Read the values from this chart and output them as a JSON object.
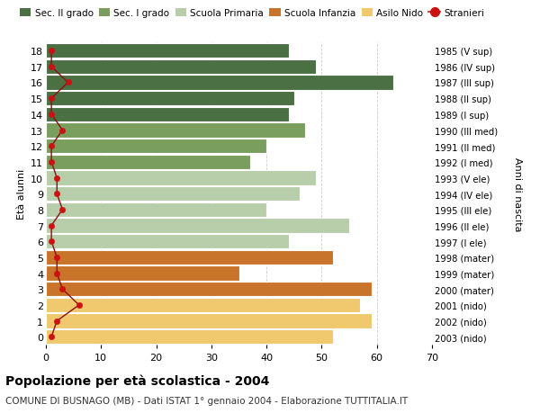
{
  "ages": [
    18,
    17,
    16,
    15,
    14,
    13,
    12,
    11,
    10,
    9,
    8,
    7,
    6,
    5,
    4,
    3,
    2,
    1,
    0
  ],
  "right_labels": [
    "1985 (V sup)",
    "1986 (IV sup)",
    "1987 (III sup)",
    "1988 (II sup)",
    "1989 (I sup)",
    "1990 (III med)",
    "1991 (II med)",
    "1992 (I med)",
    "1993 (V ele)",
    "1994 (IV ele)",
    "1995 (III ele)",
    "1996 (II ele)",
    "1997 (I ele)",
    "1998 (mater)",
    "1999 (mater)",
    "2000 (mater)",
    "2001 (nido)",
    "2002 (nido)",
    "2003 (nido)"
  ],
  "bar_values": [
    44,
    49,
    63,
    45,
    44,
    47,
    40,
    37,
    49,
    46,
    40,
    55,
    44,
    52,
    35,
    59,
    57,
    59,
    52
  ],
  "bar_colors": [
    "#4a7043",
    "#4a7043",
    "#4a7043",
    "#4a7043",
    "#4a7043",
    "#7a9e5e",
    "#7a9e5e",
    "#7a9e5e",
    "#b8ceaa",
    "#b8ceaa",
    "#b8ceaa",
    "#b8ceaa",
    "#b8ceaa",
    "#c8742a",
    "#c8742a",
    "#c8742a",
    "#f0c96e",
    "#f0c96e",
    "#f0c96e"
  ],
  "stranieri_values": [
    1,
    1,
    4,
    1,
    1,
    3,
    1,
    1,
    2,
    2,
    3,
    1,
    1,
    2,
    2,
    3,
    6,
    2,
    1
  ],
  "legend_entries": [
    {
      "label": "Sec. II grado",
      "color": "#4a7043"
    },
    {
      "label": "Sec. I grado",
      "color": "#7a9e5e"
    },
    {
      "label": "Scuola Primaria",
      "color": "#b8ceaa"
    },
    {
      "label": "Scuola Infanzia",
      "color": "#c8742a"
    },
    {
      "label": "Asilo Nido",
      "color": "#f0c96e"
    },
    {
      "label": "Stranieri",
      "color": "#cc1111"
    }
  ],
  "ylabel_left": "Età alunni",
  "ylabel_right": "Anni di nascita",
  "xlim": [
    0,
    70
  ],
  "xticks": [
    0,
    10,
    20,
    30,
    40,
    50,
    60,
    70
  ],
  "ylim": [
    -0.5,
    18.5
  ],
  "title": "Popolazione per età scolastica - 2004",
  "subtitle": "COMUNE DI BUSNAGO (MB) - Dati ISTAT 1° gennaio 2004 - Elaborazione TUTTITALIA.IT",
  "background_color": "#ffffff",
  "bar_height": 0.92,
  "grid_color": "#cccccc",
  "stranieri_line_color": "#8b1010",
  "stranieri_dot_color": "#cc1111"
}
